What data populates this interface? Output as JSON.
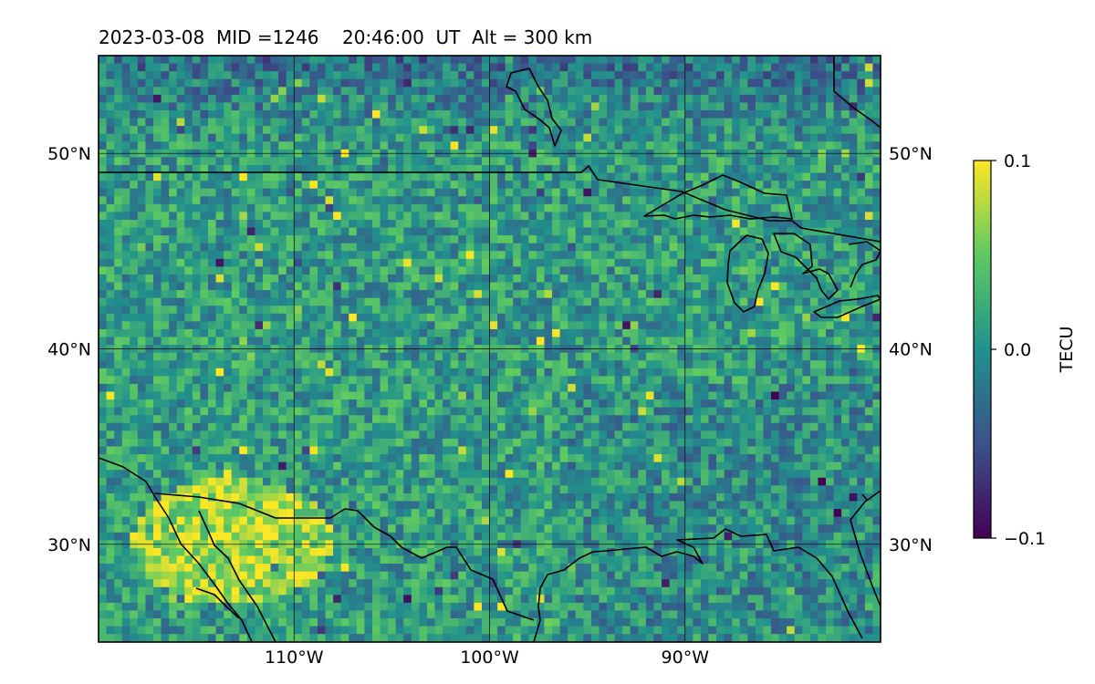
{
  "title": {
    "date": "2023-03-08",
    "mid": "MID =1246",
    "time": "20:46:00  UT",
    "alt": "Alt = 300 km"
  },
  "map": {
    "lon_range": [
      -120,
      -80
    ],
    "lat_range": [
      25,
      55
    ],
    "lon_ticks": [
      {
        "value": -110,
        "label": "110°W"
      },
      {
        "value": -100,
        "label": "100°W"
      },
      {
        "value": -90,
        "label": "90°W"
      }
    ],
    "lat_ticks": [
      {
        "value": 50,
        "label": "50°N"
      },
      {
        "value": 40,
        "label": "40°N"
      },
      {
        "value": 30,
        "label": "30°N"
      }
    ],
    "gridlines": true
  },
  "colorbar": {
    "label": "TECU",
    "min": -0.1,
    "max": 0.1,
    "ticks": [
      {
        "value": 0.1,
        "label": "0.1"
      },
      {
        "value": 0.0,
        "label": "0.0"
      },
      {
        "value": -0.1,
        "label": "−0.1"
      }
    ],
    "colormap": "viridis",
    "stops": [
      "#440154",
      "#3b528b",
      "#21918c",
      "#5ec962",
      "#fde725"
    ]
  },
  "colors": {
    "coastline": "#000000",
    "gridline": "#000000"
  }
}
